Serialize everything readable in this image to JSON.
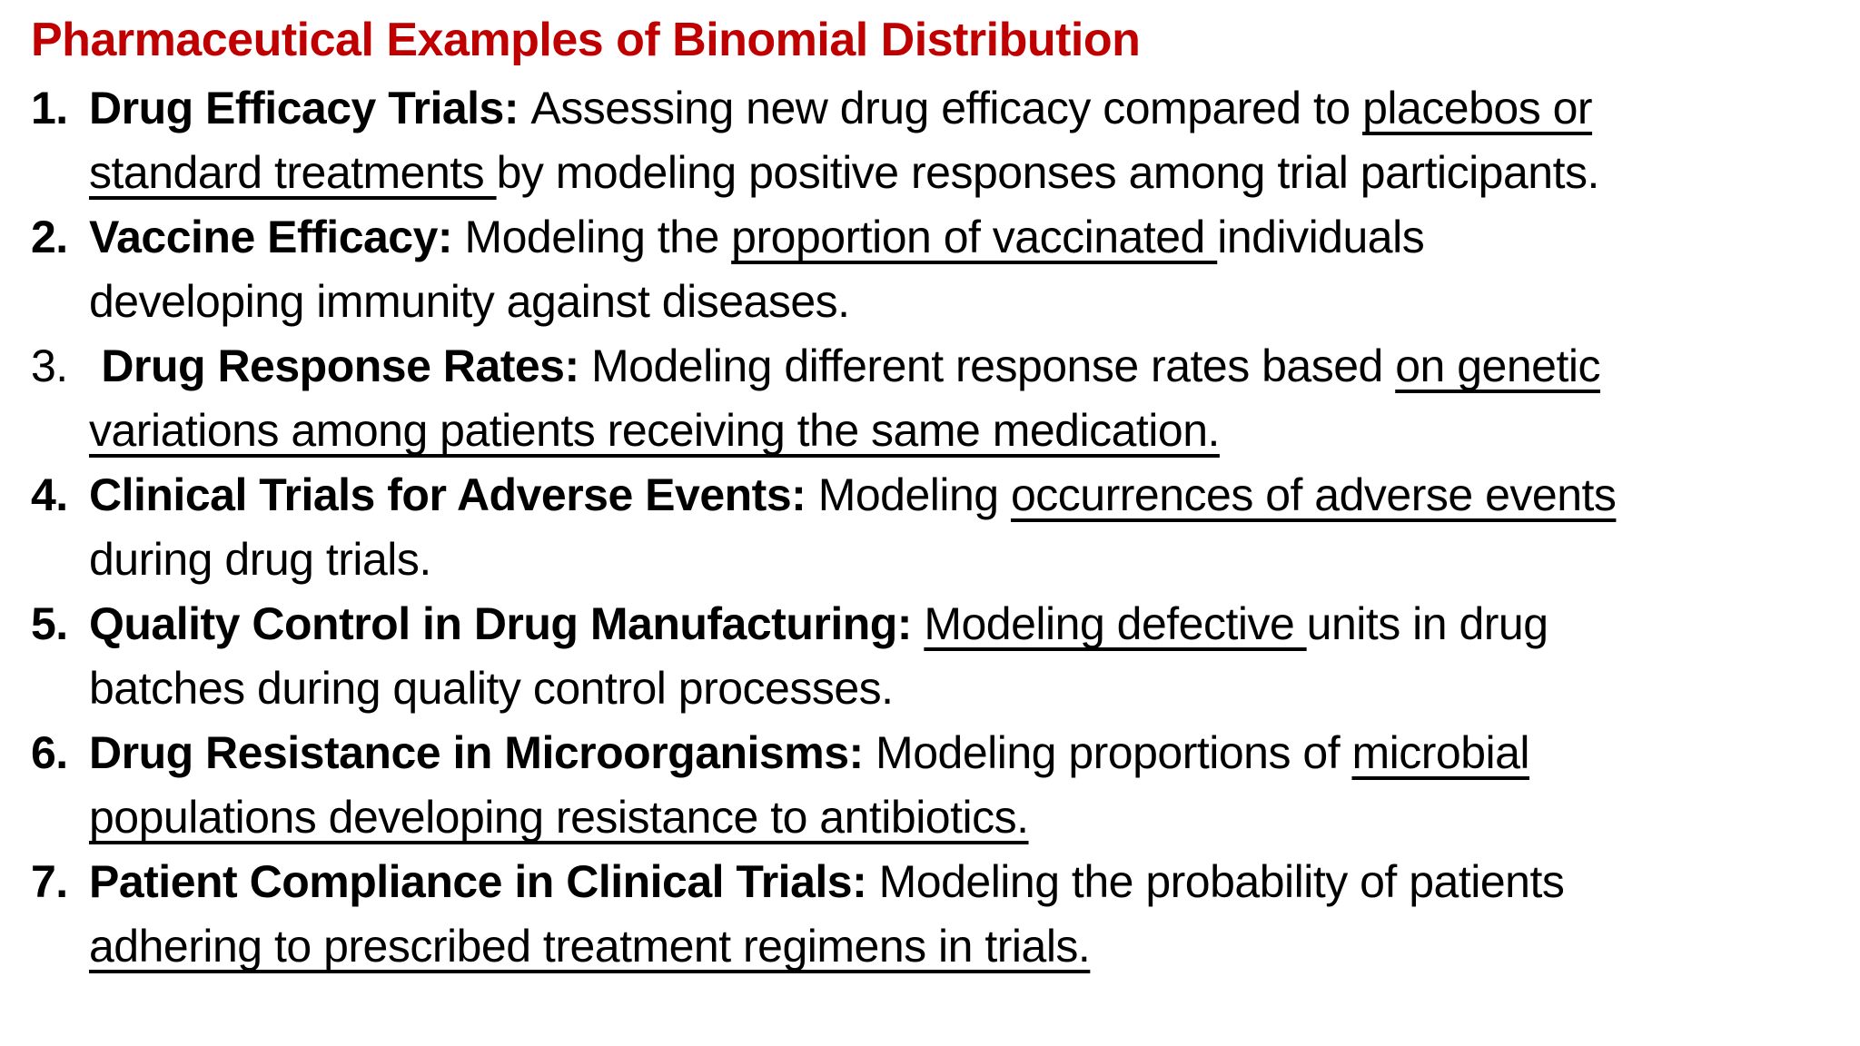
{
  "title": {
    "text": "Pharmaceutical Examples of Binomial Distribution",
    "color": "#C00000"
  },
  "list": {
    "items": [
      {
        "number": "1.",
        "number_bold": true,
        "lines": [
          [
            {
              "t": "Drug Efficacy Trials: ",
              "b": true
            },
            {
              "t": "Assessing new drug efficacy compared to "
            },
            {
              "t": "placebos or",
              "u": true
            }
          ],
          [
            {
              "t": "standard treatments ",
              "u": true
            },
            {
              "t": "by modeling positive responses among trial participants."
            }
          ]
        ]
      },
      {
        "number": "2.",
        "number_bold": true,
        "lines": [
          [
            {
              "t": "Vaccine Efficacy: ",
              "b": true
            },
            {
              "t": "Modeling the "
            },
            {
              "t": "proportion of vaccinated ",
              "u": true
            },
            {
              "t": "individuals"
            }
          ],
          [
            {
              "t": "developing immunity against diseases."
            }
          ]
        ]
      },
      {
        "number": "3.",
        "number_bold": false,
        "lines": [
          [
            {
              "t": " "
            },
            {
              "t": "Drug Response Rates: ",
              "b": true
            },
            {
              "t": "Modeling different response rates based "
            },
            {
              "t": "on genetic",
              "u": true
            }
          ],
          [
            {
              "t": "variations among patients receiving the same medication.",
              "u": true
            }
          ]
        ]
      },
      {
        "number": "4.",
        "number_bold": true,
        "lines": [
          [
            {
              "t": "Clinical Trials for Adverse Events: ",
              "b": true
            },
            {
              "t": "Modeling "
            },
            {
              "t": "occurrences of adverse events",
              "u": true
            }
          ],
          [
            {
              "t": "during drug trials."
            }
          ]
        ]
      },
      {
        "number": "5.",
        "number_bold": true,
        "lines": [
          [
            {
              "t": "Quality Control in Drug Manufacturing: ",
              "b": true
            },
            {
              "t": "Modeling defective ",
              "u": true
            },
            {
              "t": "units in drug"
            }
          ],
          [
            {
              "t": "batches during quality control processes."
            }
          ]
        ]
      },
      {
        "number": "6.",
        "number_bold": true,
        "lines": [
          [
            {
              "t": "Drug Resistance in Microorganisms: ",
              "b": true
            },
            {
              "t": "Modeling proportions of "
            },
            {
              "t": "microbial",
              "u": true
            }
          ],
          [
            {
              "t": "populations developing resistance to antibiotics.",
              "u": true
            }
          ]
        ]
      },
      {
        "number": "7.",
        "number_bold": true,
        "lines": [
          [
            {
              "t": "Patient Compliance in Clinical Trials: ",
              "b": true
            },
            {
              "t": "Modeling the probability of patients"
            }
          ],
          [
            {
              "t": "adhering to prescribed treatment regimens in trials.",
              "u": true
            }
          ]
        ]
      }
    ]
  }
}
